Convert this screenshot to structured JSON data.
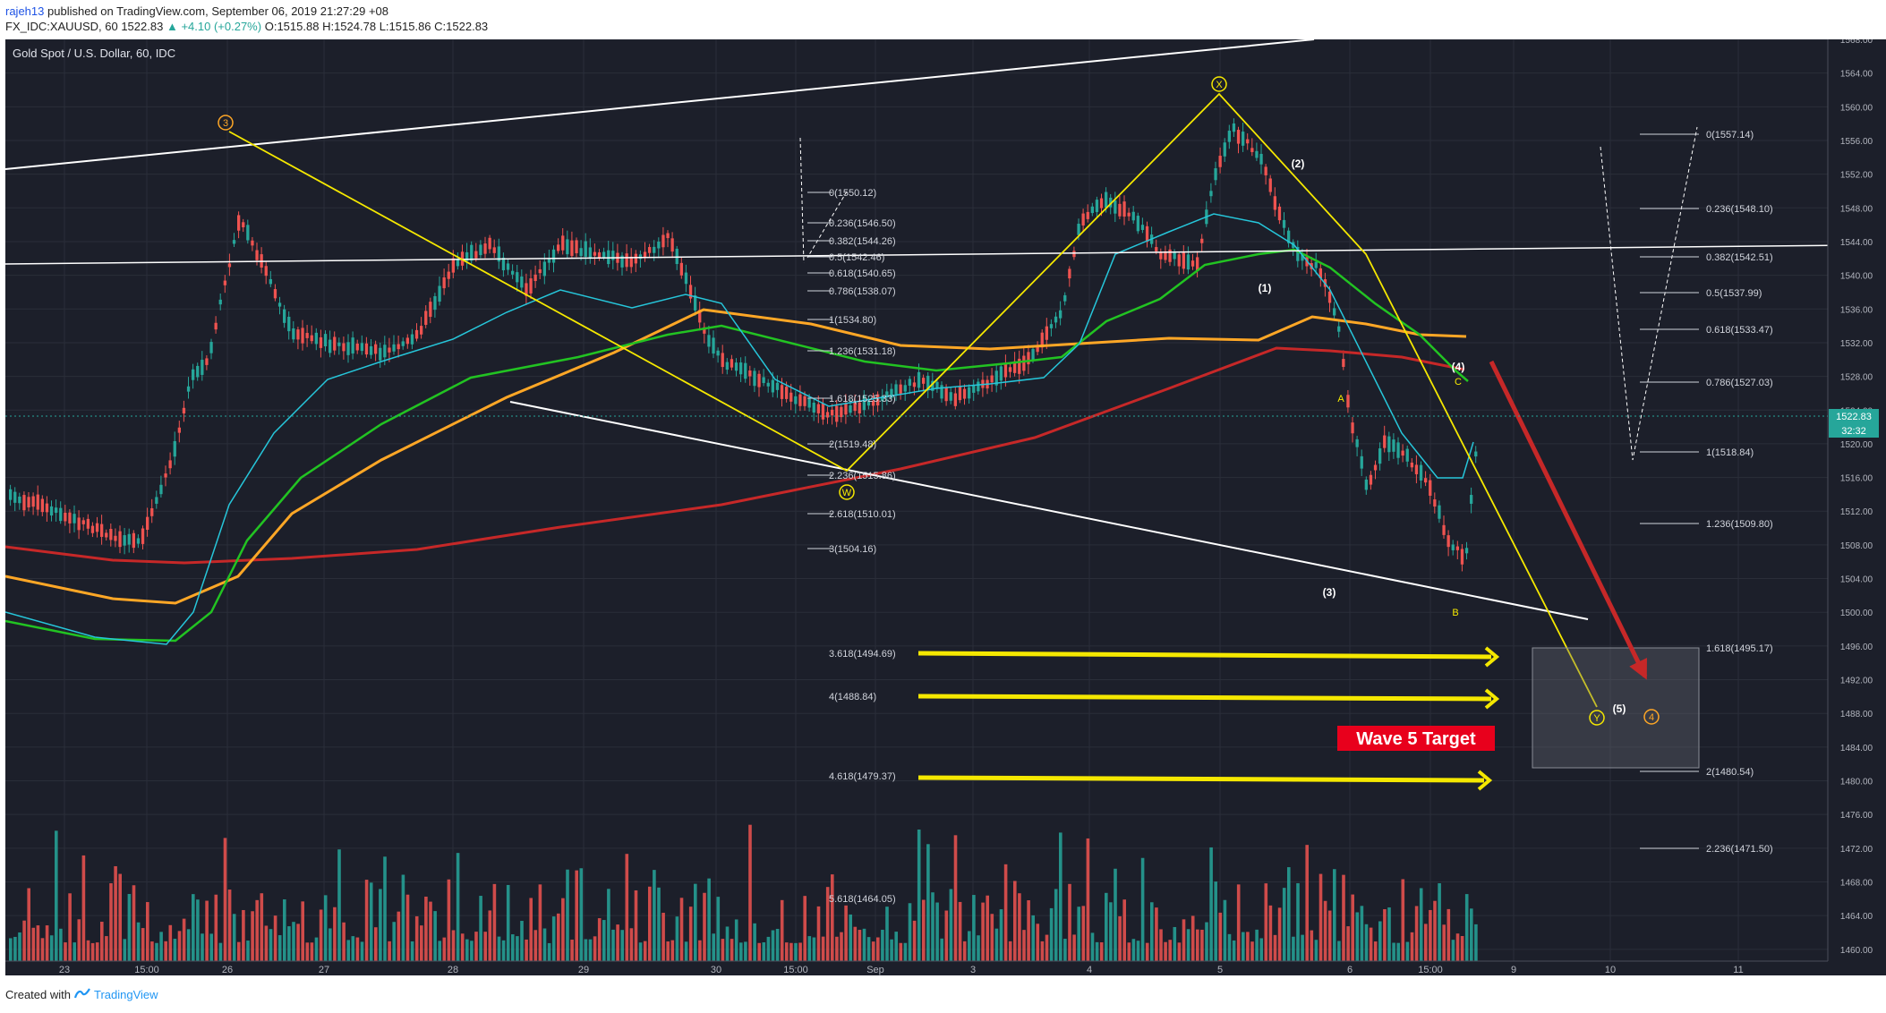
{
  "header": {
    "author": "rajeh13",
    "published_text": "published on TradingView.com, September 06, 2019 21:27:29 +08",
    "symbol_line": "FX_IDC:XAUUSD, 60",
    "last_price": "1522.83",
    "change": "+4.10 (+0.27%)",
    "o_label": "O:",
    "o_value": "1515.88",
    "h_label": "H:",
    "h_value": "1524.78",
    "l_label": "L:",
    "l_value": "1515.86",
    "c_label": "C:",
    "c_value": "1522.83"
  },
  "chart": {
    "title": "Gold Spot / U.S. Dollar, 60, IDC",
    "price_axis": [
      "1568.00",
      "1564.00",
      "1560.00",
      "1556.00",
      "1552.00",
      "1548.00",
      "1544.00",
      "1540.00",
      "1536.00",
      "1532.00",
      "1528.00",
      "1524.00",
      "1520.00",
      "1516.00",
      "1512.00",
      "1508.00",
      "1504.00",
      "1500.00",
      "1496.00",
      "1492.00",
      "1488.00",
      "1484.00",
      "1480.00",
      "1476.00",
      "1472.00",
      "1468.00",
      "1464.00",
      "1460.00"
    ],
    "price_tag": "1522.83",
    "time_tag": "32:32",
    "time_axis": [
      "23",
      "15:00",
      "26",
      "27",
      "28",
      "29",
      "30",
      "15:00",
      "Sep",
      "3",
      "4",
      "5",
      "6",
      "15:00",
      "9",
      "10",
      "11"
    ],
    "fib_left": [
      "0(1550.12)",
      "0.236(1546.50)",
      "0.382(1544.26)",
      "0.5(1542.46)",
      "0.618(1540.65)",
      "0.786(1538.07)",
      "1(1534.80)",
      "1.236(1531.18)",
      "1.618(1525.33)",
      "2(1519.48)",
      "2.236(1515.86)",
      "2.618(1510.01)",
      "3(1504.16)",
      "3.618(1494.69)",
      "4(1488.84)",
      "4.618(1479.37)",
      "5.618(1464.05)"
    ],
    "fib_right": [
      "0(1557.14)",
      "0.236(1548.10)",
      "0.382(1542.51)",
      "0.5(1537.99)",
      "0.618(1533.47)",
      "0.786(1527.03)",
      "1(1518.84)",
      "1.236(1509.80)",
      "1.618(1495.17)",
      "2(1480.54)",
      "2.236(1471.50)"
    ],
    "wave_labels": {
      "circ3": "3",
      "circX": "X",
      "circW": "W",
      "circY": "Y",
      "circ4": "4",
      "w1": "(1)",
      "w2": "(2)",
      "w3": "(3)",
      "w4": "(4)",
      "w5": "(5)",
      "a": "A",
      "b": "B",
      "c": "C"
    },
    "target_label": "Wave 5 Target",
    "colors": {
      "background": "#1c1f2a",
      "up_candle": "#26a69a",
      "down_candle": "#ef5350",
      "yellow": "#f5e800",
      "ema_orange": "#ffa726",
      "ema_red": "#c62828",
      "ema_green": "#22c322",
      "ema_cyan": "#26c6da"
    }
  },
  "footer": {
    "created_with": "Created with",
    "brand": "TradingView"
  }
}
